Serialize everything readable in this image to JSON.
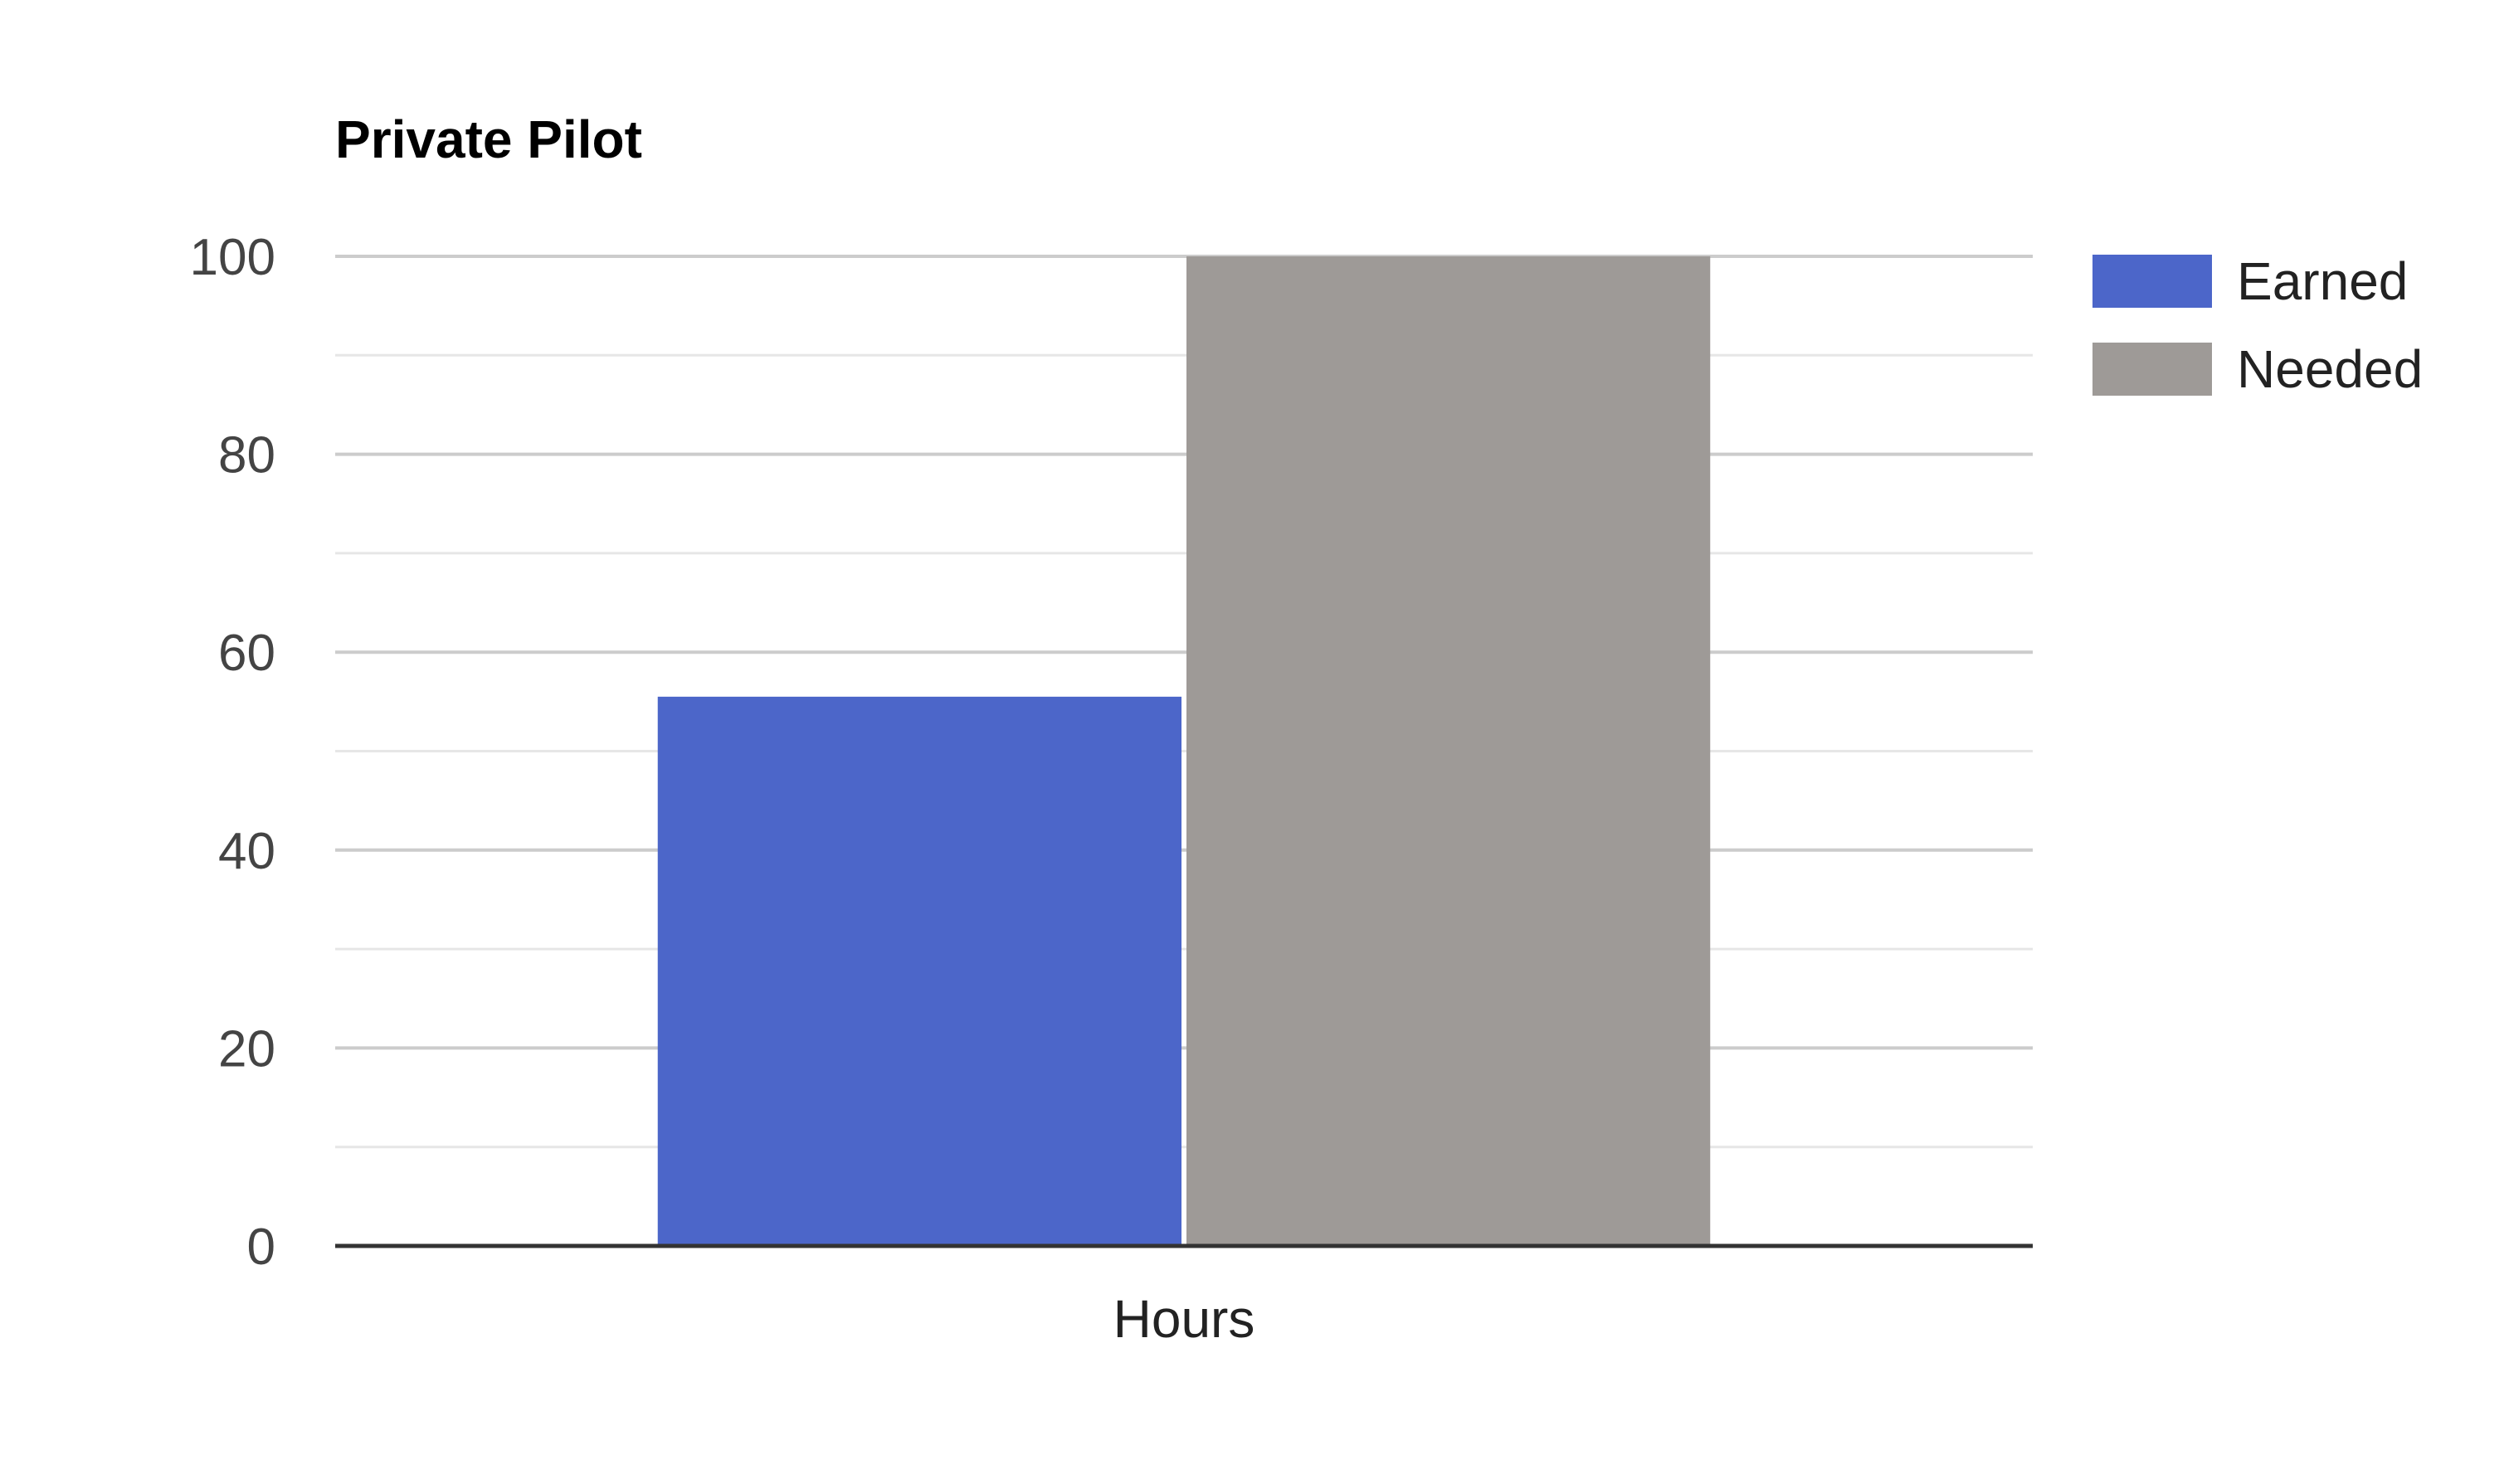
{
  "chart_data": {
    "type": "bar",
    "title": "Private Pilot",
    "xlabel": "",
    "ylabel": "",
    "categories": [
      "Hours"
    ],
    "series": [
      {
        "name": "Earned",
        "values": [
          55.5
        ],
        "color": "#4c66c9"
      },
      {
        "name": "Needed",
        "values": [
          100
        ],
        "color": "#9e9a97"
      }
    ],
    "ylim": [
      0,
      100
    ],
    "y_ticks": [
      0,
      20,
      40,
      60,
      80,
      100
    ],
    "y_tick_labels": [
      "0",
      "20",
      "40",
      "60",
      "80",
      "100"
    ],
    "grid": true,
    "legend": "right",
    "colors": {
      "gridline": "#cccccc",
      "minor_gridline": "#e6e6e6",
      "baseline": "#333333"
    }
  }
}
